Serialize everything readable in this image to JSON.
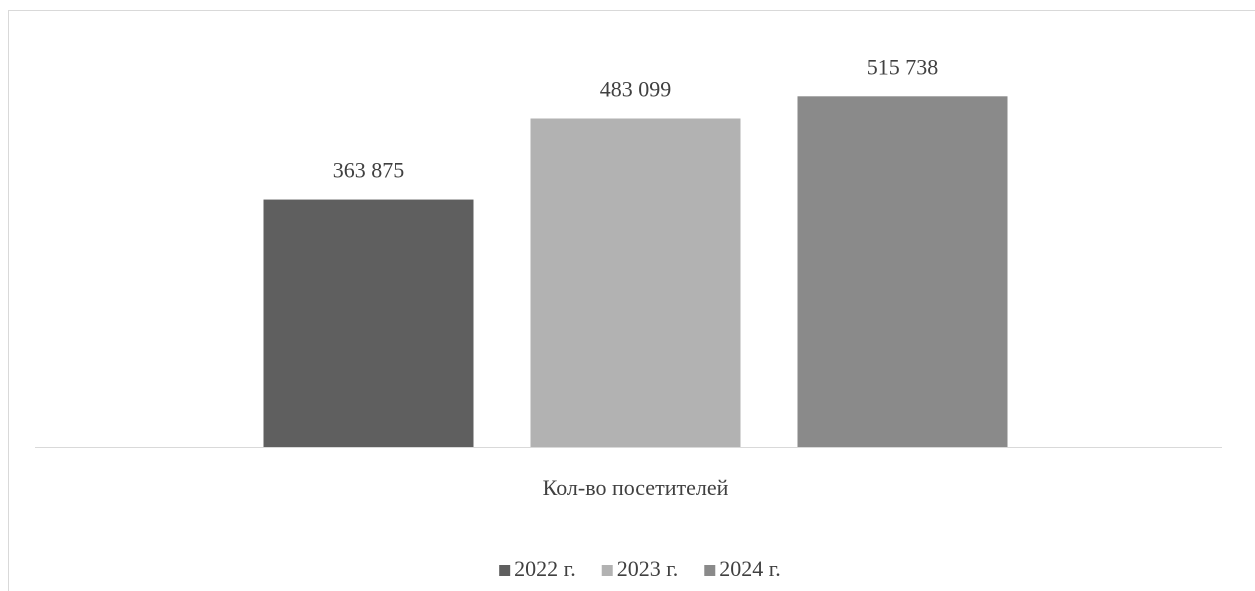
{
  "chart_data": {
    "type": "bar",
    "categories": [
      "Кол-во посетителей"
    ],
    "series": [
      {
        "name": "2022 г.",
        "color": "#5f5f5f",
        "values": [
          363875
        ],
        "value_labels": [
          "363 875"
        ]
      },
      {
        "name": "2023 г.",
        "color": "#b2b2b2",
        "values": [
          483099
        ],
        "value_labels": [
          "483 099"
        ]
      },
      {
        "name": "2024 г.",
        "color": "#8a8a8a",
        "values": [
          515738
        ],
        "value_labels": [
          "515 738"
        ]
      }
    ],
    "ylim": [
      0,
      600000
    ],
    "legend": "bottom"
  }
}
